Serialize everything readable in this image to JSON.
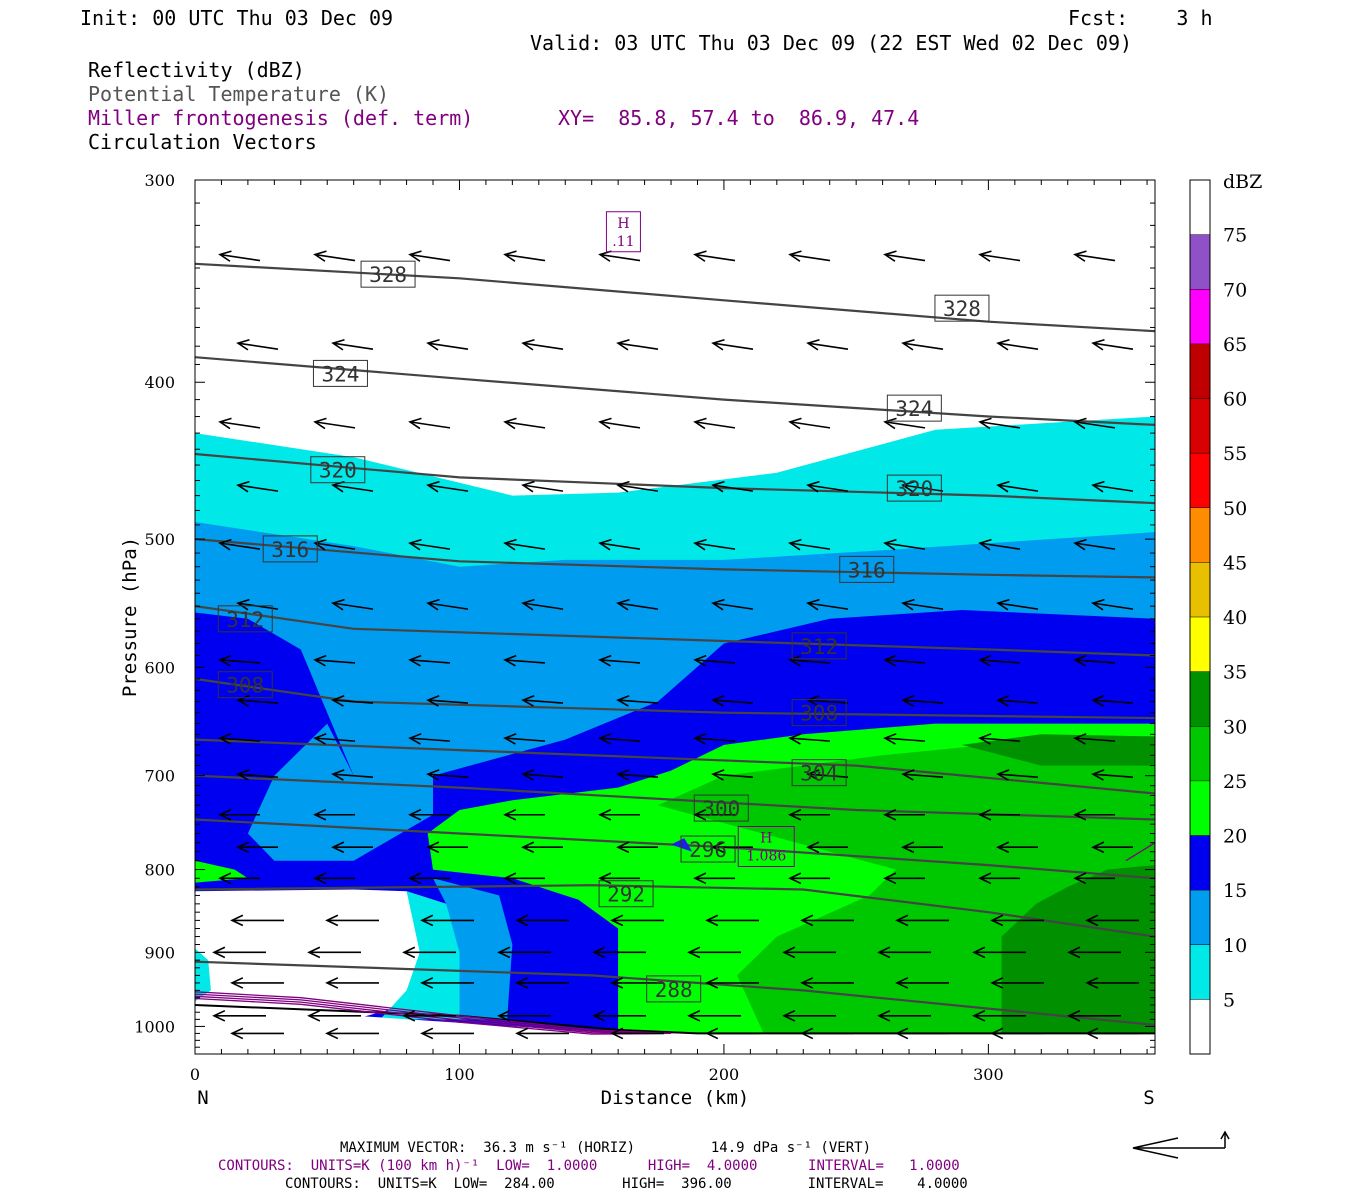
{
  "header": {
    "init": "Init: 00 UTC Thu 03 Dec 09",
    "fcst": "Fcst:    3 h",
    "valid": "Valid: 03 UTC Thu 03 Dec 09 (22 EST Wed 02 Dec 09)"
  },
  "fields": {
    "reflectivity": "Reflectivity (dBZ)",
    "theta": "Potential Temperature (K)",
    "miller": "Miller frontogenesis (def. term)",
    "xy": "XY=  85.8, 57.4 to  86.9, 47.4",
    "vectors": "Circulation Vectors"
  },
  "footer": {
    "max_vector": "MAXIMUM VECTOR:  36.3 m s⁻¹ (HORIZ)         14.9 dPa s⁻¹ (VERT)",
    "contours_miller": "CONTOURS:  UNITS=K (100 km h)⁻¹  LOW=  1.0000      HIGH=  4.0000      INTERVAL=   1.0000",
    "contours_theta": "CONTOURS:  UNITS=K  LOW=  284.00        HIGH=  396.00         INTERVAL=    4.0000"
  },
  "colors": {
    "theta": "#444444",
    "miller": "#800080",
    "dbz_5": "#00e8e8",
    "dbz_10": "#009cf0",
    "dbz_15": "#0000f0",
    "dbz_20": "#00ff00",
    "dbz_25": "#00c800",
    "dbz_30": "#009000"
  },
  "chart_data": {
    "type": "heatmap",
    "title": "",
    "xlabel": "Distance (km)",
    "ylabel": "Pressure (hPa)",
    "xlim": [
      0,
      363
    ],
    "ylim": [
      1040,
      300
    ],
    "y_scale": "log",
    "x_ticks": [
      0,
      100,
      200,
      300
    ],
    "x_tick_labels": [
      "0",
      "100",
      "200",
      "300"
    ],
    "y_ticks": [
      300,
      400,
      500,
      600,
      700,
      800,
      900,
      1000
    ],
    "x_end_labels": {
      "left": "N",
      "right": "S"
    },
    "colorbar": {
      "title": "dBZ",
      "levels": [
        5,
        10,
        15,
        20,
        25,
        30,
        35,
        40,
        45,
        50,
        55,
        60,
        65,
        70,
        75
      ],
      "colors": [
        "#ffffff",
        "#00e8e8",
        "#009cf0",
        "#0000f0",
        "#00ff00",
        "#00c800",
        "#009000",
        "#ffff00",
        "#e8c000",
        "#ff8c00",
        "#ff0000",
        "#d80000",
        "#c00000",
        "#ff00ff",
        "#9050c8",
        "#ffffff"
      ]
    },
    "theta_contours": [
      {
        "label": "328",
        "points": [
          [
            0,
            338
          ],
          [
            100,
            345
          ],
          [
            200,
            356
          ],
          [
            300,
            367
          ],
          [
            363,
            372
          ]
        ],
        "label_at": [
          [
            73,
            343
          ],
          [
            290,
            360
          ]
        ]
      },
      {
        "label": "324",
        "points": [
          [
            0,
            386
          ],
          [
            100,
            398
          ],
          [
            200,
            410
          ],
          [
            300,
            420
          ],
          [
            363,
            425
          ]
        ],
        "label_at": [
          [
            55,
            395
          ],
          [
            272,
            415
          ]
        ]
      },
      {
        "label": "320",
        "points": [
          [
            0,
            443
          ],
          [
            100,
            458
          ],
          [
            200,
            465
          ],
          [
            300,
            470
          ],
          [
            363,
            475
          ]
        ],
        "label_at": [
          [
            54,
            453
          ],
          [
            272,
            465
          ]
        ]
      },
      {
        "label": "316",
        "points": [
          [
            0,
            500
          ],
          [
            100,
            516
          ],
          [
            200,
            522
          ],
          [
            300,
            526
          ],
          [
            363,
            528
          ]
        ],
        "label_at": [
          [
            36,
            507
          ],
          [
            254,
            522
          ]
        ]
      },
      {
        "label": "312",
        "points": [
          [
            0,
            550
          ],
          [
            60,
            568
          ],
          [
            200,
            578
          ],
          [
            300,
            585
          ],
          [
            363,
            590
          ]
        ],
        "label_at": [
          [
            19,
            560
          ],
          [
            236,
            582
          ]
        ]
      },
      {
        "label": "308",
        "points": [
          [
            0,
            610
          ],
          [
            60,
            630
          ],
          [
            200,
            640
          ],
          [
            300,
            643
          ],
          [
            363,
            645
          ]
        ],
        "label_at": [
          [
            19,
            615
          ],
          [
            236,
            640
          ]
        ]
      },
      {
        "label": "304",
        "points": [
          [
            0,
            665
          ],
          [
            100,
            675
          ],
          [
            250,
            690
          ],
          [
            363,
            718
          ]
        ],
        "label_at": [
          [
            236,
            697
          ]
        ]
      },
      {
        "label": "300",
        "points": [
          [
            0,
            700
          ],
          [
            100,
            712
          ],
          [
            250,
            735
          ],
          [
            363,
            745
          ]
        ],
        "label_at": [
          [
            199,
            733
          ]
        ]
      },
      {
        "label": "296",
        "points": [
          [
            0,
            745
          ],
          [
            100,
            760
          ],
          [
            200,
            775
          ],
          [
            300,
            795
          ],
          [
            363,
            810
          ]
        ],
        "label_at": [
          [
            194,
            777
          ]
        ]
      },
      {
        "label": "292",
        "points": [
          [
            0,
            823
          ],
          [
            150,
            818
          ],
          [
            230,
            823
          ],
          [
            300,
            850
          ],
          [
            363,
            880
          ]
        ],
        "label_at": [
          [
            163,
            828
          ]
        ]
      },
      {
        "label": "288",
        "points": [
          [
            0,
            912
          ],
          [
            150,
            930
          ],
          [
            230,
            950
          ],
          [
            300,
            975
          ],
          [
            363,
            998
          ]
        ],
        "label_at": [
          [
            181,
            948
          ]
        ]
      }
    ],
    "miller_maxima": [
      {
        "label": "H",
        "value": ".11",
        "x": 162,
        "p": 322
      },
      {
        "label": "H",
        "value": "1.086",
        "x": 216,
        "p": 772
      }
    ],
    "vector_rows_p": [
      335,
      380,
      425,
      465,
      505,
      550,
      595,
      630,
      665,
      700,
      740,
      775,
      810,
      860,
      900,
      940,
      985,
      1010
    ],
    "max_vector": {
      "horiz": 36.3,
      "horiz_units": "m s-1",
      "vert": 14.9,
      "vert_units": "dPa s-1"
    },
    "theta_contour_range": {
      "low": 284.0,
      "high": 396.0,
      "interval": 4.0,
      "units": "K"
    },
    "miller_contour_range": {
      "low": 1.0,
      "high": 4.0,
      "interval": 1.0,
      "units": "K (100 km h)-1"
    }
  }
}
